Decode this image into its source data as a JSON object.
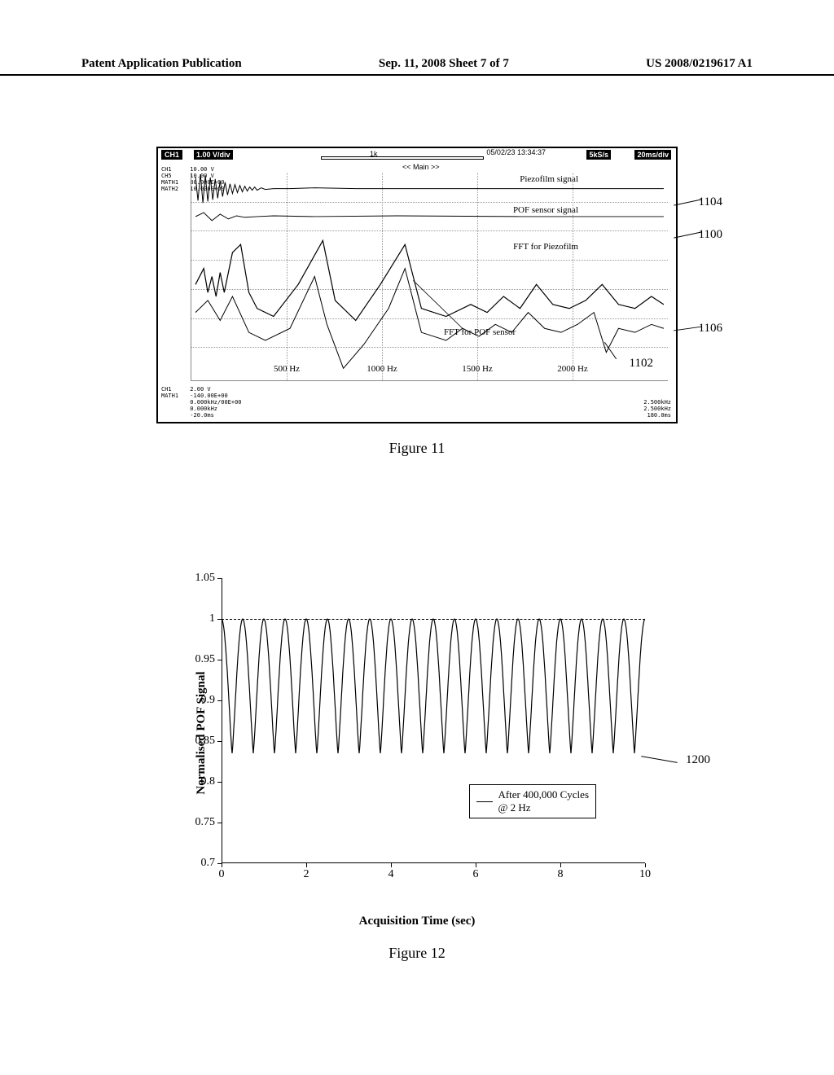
{
  "header": {
    "left": "Patent Application Publication",
    "center": "Sep. 11, 2008  Sheet 7 of 7",
    "right": "US 2008/0219617 A1"
  },
  "figure11": {
    "caption": "Figure 11",
    "scope": {
      "ch1_label": "CH1",
      "vdiv": "1.00 V/div",
      "marker_1k": "1k",
      "timestamp": "05/02/23 13:34:37",
      "sample_rate": "5kS/s",
      "tdiv": "20ms/div",
      "main_label": "<< Main >>",
      "ch_info_top": "CH1\nCH5\nMATH1\nMATH2",
      "ch_info_top_vals": "10.00 V\n10.00 V\n80.000E+00\n10.000E+00",
      "ch_info_bot": "CH1\nMATH1",
      "ch_info_bot_vals": "2.00 V\n-140.00E+00\n0.000kHz/00E+00\n0.000kHz\n-20.0ms",
      "ch_info_bot_right": "2.500kHz\n2.500kHz\n180.0ms",
      "annotations": {
        "piezofilm_signal": "Piezofilm signal",
        "pof_sensor_signal": "POF sensor signal",
        "fft_piezofilm": "FFT for Piezofilm",
        "fft_pof": "FFT for POF sensor"
      },
      "xticks": [
        "500 Hz",
        "1000 Hz",
        "1500 Hz",
        "2000 Hz"
      ],
      "callouts": {
        "c1104": "1104",
        "c1100": "1100",
        "c1106": "1106",
        "c1102": "1102"
      }
    }
  },
  "figure12": {
    "caption": "Figure 12",
    "chart": {
      "type": "line",
      "ylabel": "Normalised POF Signal",
      "xlabel": "Acquisition Time (sec)",
      "ylim": [
        0.7,
        1.05
      ],
      "xlim": [
        0,
        10
      ],
      "yticks": [
        0.7,
        0.75,
        0.8,
        0.85,
        0.9,
        0.95,
        1,
        1.05
      ],
      "xticks": [
        0,
        2,
        4,
        6,
        8,
        10
      ],
      "dashline_y": 1.0,
      "legend": "After 400,000 Cycles @ 2 Hz",
      "callout": "1200",
      "line_color": "#000000",
      "background_color": "#ffffff",
      "frequency_hz": 2,
      "amplitude_low": 0.835,
      "amplitude_high": 1.0,
      "num_cycles": 20
    }
  }
}
